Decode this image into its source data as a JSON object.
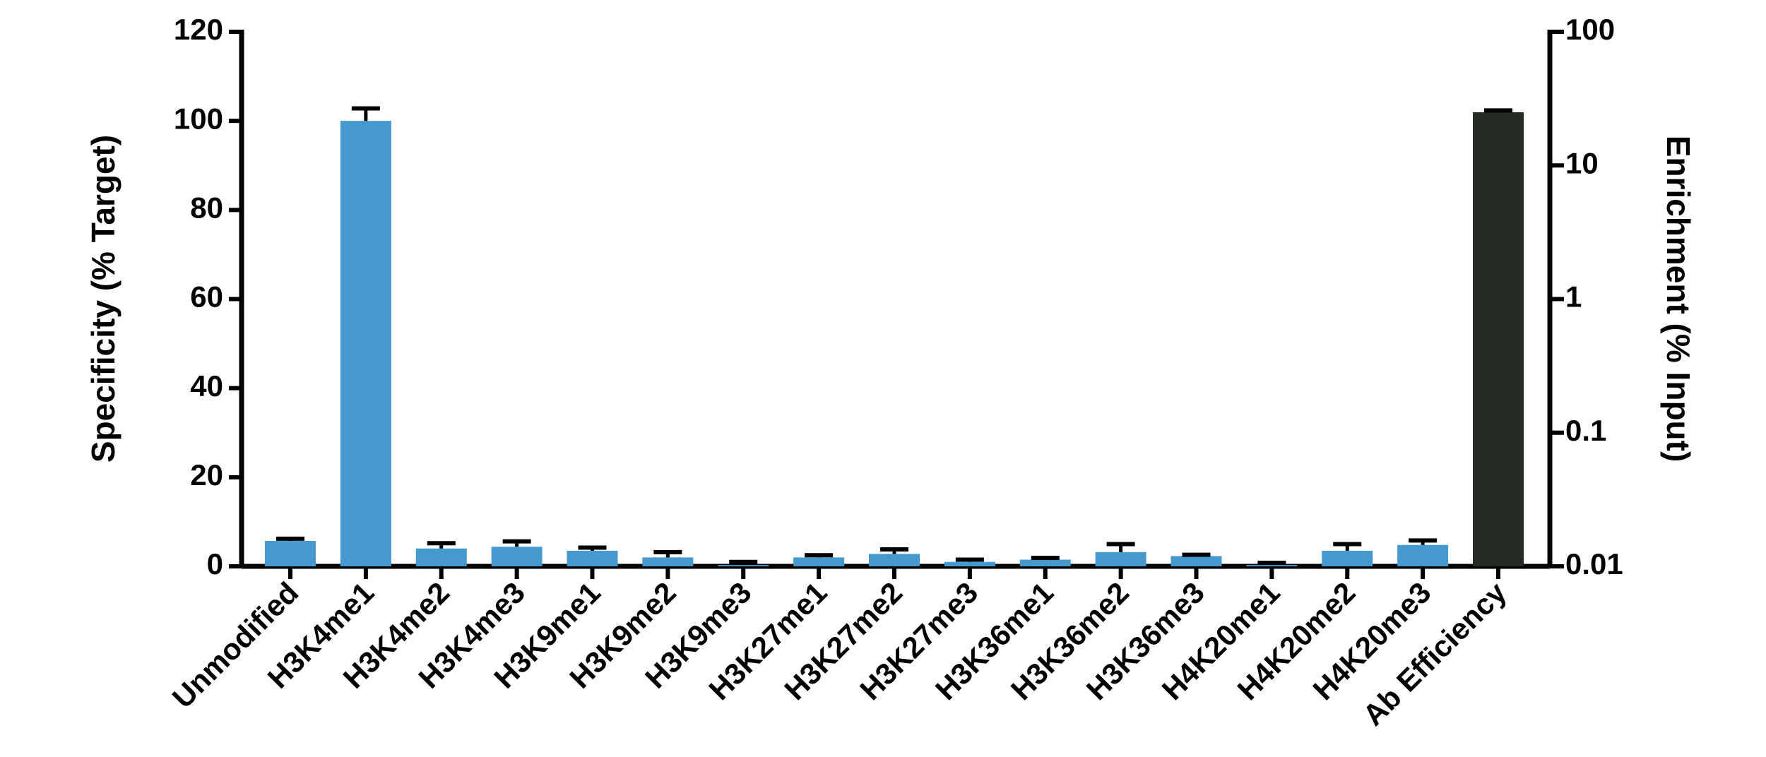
{
  "chart_data": {
    "type": "bar",
    "y_label": "Specificity (% Target)",
    "y2_label": "Enrichment (% Input)",
    "categories": [
      "Unmodified",
      "H3K4me1",
      "H3K4me2",
      "H3K4me3",
      "H3K9me1",
      "H3K9me2",
      "H3K9me3",
      "H3K27me1",
      "H3K27me2",
      "H3K27me3",
      "H3K36me1",
      "H3K36me2",
      "H3K36me3",
      "H4K20me1",
      "H4K20me2",
      "H4K20me3",
      "Ab Efficiency"
    ],
    "series": [
      {
        "color": "#4599cd",
        "values": [
          5.7,
          100,
          4.0,
          4.4,
          3.5,
          2.0,
          0.3,
          2.0,
          2.8,
          1.0,
          1.5,
          3.2,
          2.3,
          0.3,
          3.5,
          4.8,
          null
        ],
        "errors": [
          0.5,
          2.8,
          1.2,
          1.2,
          0.7,
          1.2,
          0.7,
          0.5,
          1.0,
          0.5,
          0.4,
          1.8,
          0.3,
          0.5,
          1.5,
          1.0,
          null
        ]
      },
      {
        "color": "#252a25",
        "axis": "y2",
        "values": [
          null,
          null,
          null,
          null,
          null,
          null,
          null,
          null,
          null,
          null,
          null,
          null,
          null,
          null,
          null,
          null,
          25
        ],
        "errors": [
          null,
          null,
          null,
          null,
          null,
          null,
          null,
          null,
          null,
          null,
          null,
          null,
          null,
          null,
          null,
          null,
          0.8
        ]
      }
    ],
    "ylim": [
      0,
      120
    ],
    "yticks": [
      0,
      20,
      40,
      60,
      80,
      100,
      120
    ],
    "y2lim": [
      0.01,
      100
    ],
    "y2ticks": [
      0.01,
      0.1,
      1,
      10,
      100
    ],
    "y2log": true
  }
}
